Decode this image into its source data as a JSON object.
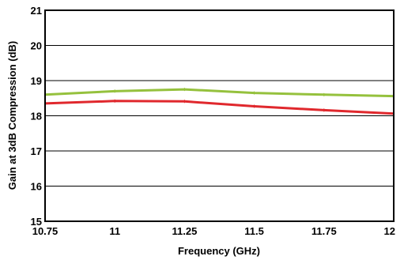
{
  "chart_data": {
    "type": "line",
    "title": "",
    "xlabel": "Frequency (GHz)",
    "ylabel": "Gain at 3dB Compression (dB)",
    "xlim": [
      10.75,
      12
    ],
    "ylim": [
      15,
      21
    ],
    "x_ticks": [
      "10.75",
      "11",
      "11.25",
      "11.5",
      "11.75",
      "12"
    ],
    "y_ticks": [
      "15",
      "16",
      "17",
      "18",
      "19",
      "20",
      "21"
    ],
    "grid": "horizontal",
    "legend": "none",
    "series": [
      {
        "color": "#95c13d",
        "x": [
          10.75,
          11,
          11.25,
          11.5,
          11.75,
          12
        ],
        "y": [
          18.6,
          18.7,
          18.75,
          18.65,
          18.6,
          18.56
        ]
      },
      {
        "color": "#e0282d",
        "x": [
          10.75,
          11,
          11.25,
          11.5,
          11.75,
          12
        ],
        "y": [
          18.35,
          18.42,
          18.41,
          18.27,
          18.16,
          18.06
        ]
      }
    ]
  }
}
